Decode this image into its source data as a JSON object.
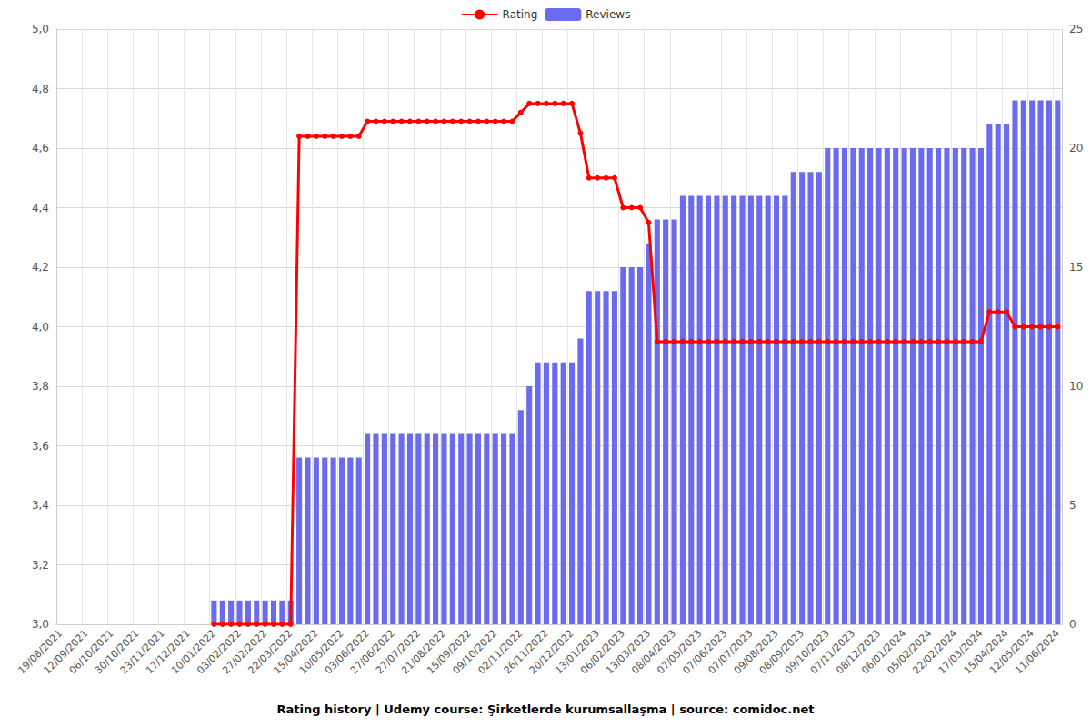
{
  "chart_data": {
    "type": "bar_line",
    "title": "Rating history | Udemy course: Şirketlerde kurumsallaşma | source: comidoc.net",
    "categories": [
      "19/08/2021",
      null,
      null,
      "12/09/2021",
      null,
      null,
      "06/10/2021",
      null,
      null,
      "30/10/2021",
      null,
      null,
      "23/11/2021",
      null,
      null,
      "17/12/2021",
      null,
      null,
      "10/01/2022",
      null,
      null,
      "03/02/2022",
      null,
      null,
      "27/02/2022",
      null,
      null,
      "22/03/2022",
      null,
      null,
      "15/04/2022",
      null,
      null,
      "10/05/2022",
      null,
      null,
      "03/06/2022",
      null,
      null,
      "27/06/2022",
      null,
      null,
      "27/07/2022",
      null,
      null,
      "21/08/2022",
      null,
      null,
      "15/09/2022",
      null,
      null,
      "09/10/2022",
      null,
      null,
      "02/11/2022",
      null,
      null,
      "26/11/2022",
      null,
      null,
      "20/12/2022",
      null,
      null,
      "13/01/2023",
      null,
      null,
      "06/02/2023",
      null,
      null,
      "13/03/2023",
      null,
      null,
      "08/04/2023",
      null,
      null,
      "07/05/2023",
      null,
      null,
      "07/06/2023",
      null,
      null,
      "07/07/2023",
      null,
      null,
      "09/08/2023",
      null,
      null,
      "08/09/2023",
      null,
      null,
      "09/10/2023",
      null,
      null,
      "07/11/2023",
      null,
      null,
      "08/12/2023",
      null,
      null,
      "06/01/2024",
      null,
      null,
      "05/02/2024",
      null,
      null,
      "22/02/2024",
      null,
      null,
      "17/03/2024",
      null,
      null,
      "15/04/2024",
      null,
      null,
      "12/05/2024",
      null,
      null,
      "11/06/2024"
    ],
    "series": [
      {
        "name": "Rating",
        "type": "line",
        "color": "#ff0000",
        "marker": "circle",
        "values": [
          null,
          null,
          null,
          null,
          null,
          null,
          null,
          null,
          null,
          null,
          null,
          null,
          null,
          null,
          null,
          null,
          null,
          null,
          3.0,
          3.0,
          3.0,
          3.0,
          3.0,
          3.0,
          3.0,
          3.0,
          3.0,
          3.0,
          4.64,
          4.64,
          4.64,
          4.64,
          4.64,
          4.64,
          4.64,
          4.64,
          4.69,
          4.69,
          4.69,
          4.69,
          4.69,
          4.69,
          4.69,
          4.69,
          4.69,
          4.69,
          4.69,
          4.69,
          4.69,
          4.69,
          4.69,
          4.69,
          4.69,
          4.69,
          4.72,
          4.75,
          4.75,
          4.75,
          4.75,
          4.75,
          4.75,
          4.65,
          4.5,
          4.5,
          4.5,
          4.5,
          4.4,
          4.4,
          4.4,
          4.35,
          3.95,
          3.95,
          3.95,
          3.95,
          3.95,
          3.95,
          3.95,
          3.95,
          3.95,
          3.95,
          3.95,
          3.95,
          3.95,
          3.95,
          3.95,
          3.95,
          3.95,
          3.95,
          3.95,
          3.95,
          3.95,
          3.95,
          3.95,
          3.95,
          3.95,
          3.95,
          3.95,
          3.95,
          3.95,
          3.95,
          3.95,
          3.95,
          3.95,
          3.95,
          3.95,
          3.95,
          3.95,
          3.95,
          3.95,
          4.05,
          4.05,
          4.05,
          4.0,
          4.0,
          4.0,
          4.0,
          4.0,
          4.0
        ]
      },
      {
        "name": "Reviews",
        "type": "bar",
        "color": "#6b6bef",
        "axis": "y2",
        "values": [
          null,
          null,
          null,
          null,
          null,
          null,
          null,
          null,
          null,
          null,
          null,
          null,
          null,
          null,
          null,
          null,
          null,
          null,
          1,
          1,
          1,
          1,
          1,
          1,
          1,
          1,
          1,
          1,
          7,
          7,
          7,
          7,
          7,
          7,
          7,
          7,
          8,
          8,
          8,
          8,
          8,
          8,
          8,
          8,
          8,
          8,
          8,
          8,
          8,
          8,
          8,
          8,
          8,
          8,
          9,
          10,
          11,
          11,
          11,
          11,
          11,
          12,
          14,
          14,
          14,
          14,
          15,
          15,
          15,
          16,
          17,
          17,
          17,
          18,
          18,
          18,
          18,
          18,
          18,
          18,
          18,
          18,
          18,
          18,
          18,
          18,
          19,
          19,
          19,
          19,
          20,
          20,
          20,
          20,
          20,
          20,
          20,
          20,
          20,
          20,
          20,
          20,
          20,
          20,
          20,
          20,
          20,
          20,
          20,
          21,
          21,
          21,
          22,
          22,
          22,
          22,
          22,
          22
        ]
      }
    ],
    "ylim": [
      3,
      5
    ],
    "yticks": [
      {
        "value": 3,
        "label": "3,0"
      },
      {
        "value": 3.2,
        "label": "3,2"
      },
      {
        "value": 3.4,
        "label": "3,4"
      },
      {
        "value": 3.6,
        "label": "3,6"
      },
      {
        "value": 3.8,
        "label": "3,8"
      },
      {
        "value": 4,
        "label": "4,0"
      },
      {
        "value": 4.2,
        "label": "4,2"
      },
      {
        "value": 4.4,
        "label": "4,4"
      },
      {
        "value": 4.6,
        "label": "4,6"
      },
      {
        "value": 4.8,
        "label": "4,8"
      },
      {
        "value": 5,
        "label": "5,0"
      }
    ],
    "y2lim": [
      0,
      25
    ],
    "y2ticks": [
      0,
      5,
      10,
      15,
      20,
      25
    ],
    "grid": true,
    "legend": "top"
  }
}
